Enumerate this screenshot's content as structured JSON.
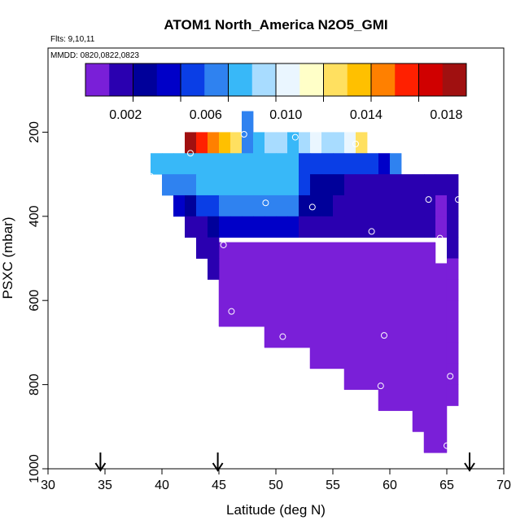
{
  "chart_data": {
    "type": "heatmap",
    "title": "ATOM1 North_America N2O5_GMI",
    "flights_label": "Flts: 9,10,11",
    "dates_label": "MMDD: 0820,0822,0823",
    "xlabel": "Latitude (deg N)",
    "ylabel": "PSXC (mbar)",
    "xlim": [
      30,
      70
    ],
    "ylim": [
      1000,
      0
    ],
    "x_ticks": [
      30,
      35,
      40,
      45,
      50,
      55,
      60,
      65,
      70
    ],
    "y_ticks": [
      200,
      400,
      600,
      800,
      1000
    ],
    "grid": false,
    "colorbar": {
      "range": [
        0,
        0.019
      ],
      "tick_values": [
        0.002,
        0.006,
        0.01,
        0.014,
        0.018
      ],
      "tick_labels": [
        "0.002",
        "0.006",
        "0.010",
        "0.014",
        "0.018"
      ],
      "colors": [
        "#7a1fd8",
        "#2a00b0",
        "#00009a",
        "#0000c8",
        "#0a3ee6",
        "#2f82f0",
        "#38b8f8",
        "#a8dcff",
        "#eaf6ff",
        "#ffffc8",
        "#ffe060",
        "#ffc000",
        "#ff8000",
        "#ff2000",
        "#d00000",
        "#a01010"
      ]
    },
    "cell_width_deg": 1,
    "cell_height_mbar": 50,
    "cells": [
      {
        "lat": 47,
        "p": 175,
        "v": 0.0065
      },
      {
        "lat": 42,
        "p": 225,
        "v": 0.0185
      },
      {
        "lat": 43,
        "p": 225,
        "v": 0.0165
      },
      {
        "lat": 44,
        "p": 225,
        "v": 0.015
      },
      {
        "lat": 45,
        "p": 225,
        "v": 0.0138
      },
      {
        "lat": 46,
        "p": 225,
        "v": 0.0128
      },
      {
        "lat": 47,
        "p": 225,
        "v": 0.007
      },
      {
        "lat": 48,
        "p": 225,
        "v": 0.0072
      },
      {
        "lat": 49,
        "p": 225,
        "v": 0.0085
      },
      {
        "lat": 50,
        "p": 225,
        "v": 0.0086
      },
      {
        "lat": 51,
        "p": 225,
        "v": 0.0083
      },
      {
        "lat": 52,
        "p": 225,
        "v": 0.0092
      },
      {
        "lat": 53,
        "p": 225,
        "v": 0.0095
      },
      {
        "lat": 54,
        "p": 225,
        "v": 0.0085
      },
      {
        "lat": 55,
        "p": 225,
        "v": 0.0092
      },
      {
        "lat": 56,
        "p": 225,
        "v": 0.0105
      },
      {
        "lat": 57,
        "p": 225,
        "v": 0.0122
      },
      {
        "lat": 39,
        "p": 275,
        "v": 0.0072
      },
      {
        "lat": 40,
        "p": 275,
        "v": 0.0072
      },
      {
        "lat": 41,
        "p": 275,
        "v": 0.0072
      },
      {
        "lat": 42,
        "p": 275,
        "v": 0.0072
      },
      {
        "lat": 43,
        "p": 275,
        "v": 0.0072
      },
      {
        "lat": 44,
        "p": 275,
        "v": 0.0072
      },
      {
        "lat": 45,
        "p": 275,
        "v": 0.0072
      },
      {
        "lat": 46,
        "p": 275,
        "v": 0.0072
      },
      {
        "lat": 47,
        "p": 275,
        "v": 0.0072
      },
      {
        "lat": 48,
        "p": 275,
        "v": 0.0072
      },
      {
        "lat": 49,
        "p": 275,
        "v": 0.0072
      },
      {
        "lat": 50,
        "p": 275,
        "v": 0.0072
      },
      {
        "lat": 51,
        "p": 275,
        "v": 0.0072
      },
      {
        "lat": 52,
        "p": 275,
        "v": 0.0052
      },
      {
        "lat": 53,
        "p": 275,
        "v": 0.0048
      },
      {
        "lat": 54,
        "p": 275,
        "v": 0.0048
      },
      {
        "lat": 55,
        "p": 275,
        "v": 0.0048
      },
      {
        "lat": 56,
        "p": 275,
        "v": 0.0048
      },
      {
        "lat": 57,
        "p": 275,
        "v": 0.0048
      },
      {
        "lat": 58,
        "p": 275,
        "v": 0.0048
      },
      {
        "lat": 59,
        "p": 275,
        "v": 0.0045
      },
      {
        "lat": 60,
        "p": 275,
        "v": 0.0062
      },
      {
        "lat": 40,
        "p": 325,
        "v": 0.0068
      },
      {
        "lat": 41,
        "p": 325,
        "v": 0.0068
      },
      {
        "lat": 42,
        "p": 325,
        "v": 0.0068
      },
      {
        "lat": 43,
        "p": 325,
        "v": 0.0072
      },
      {
        "lat": 44,
        "p": 325,
        "v": 0.0072
      },
      {
        "lat": 45,
        "p": 325,
        "v": 0.0072
      },
      {
        "lat": 46,
        "p": 325,
        "v": 0.0072
      },
      {
        "lat": 47,
        "p": 325,
        "v": 0.0072
      },
      {
        "lat": 48,
        "p": 325,
        "v": 0.0072
      },
      {
        "lat": 49,
        "p": 325,
        "v": 0.0072
      },
      {
        "lat": 50,
        "p": 325,
        "v": 0.0072
      },
      {
        "lat": 51,
        "p": 325,
        "v": 0.0072
      },
      {
        "lat": 52,
        "p": 325,
        "v": 0.0048
      },
      {
        "lat": 53,
        "p": 325,
        "v": 0.0025
      },
      {
        "lat": 54,
        "p": 325,
        "v": 0.0025
      },
      {
        "lat": 55,
        "p": 325,
        "v": 0.0025
      },
      {
        "lat": 56,
        "p": 325,
        "v": 0.0022
      },
      {
        "lat": 57,
        "p": 325,
        "v": 0.0022
      },
      {
        "lat": 58,
        "p": 325,
        "v": 0.0022
      },
      {
        "lat": 59,
        "p": 325,
        "v": 0.0022
      },
      {
        "lat": 60,
        "p": 325,
        "v": 0.0022
      },
      {
        "lat": 61,
        "p": 325,
        "v": 0.0022
      },
      {
        "lat": 62,
        "p": 325,
        "v": 0.0022
      },
      {
        "lat": 63,
        "p": 325,
        "v": 0.0022
      },
      {
        "lat": 64,
        "p": 325,
        "v": 0.0022
      },
      {
        "lat": 65,
        "p": 325,
        "v": 0.0022
      },
      {
        "lat": 41,
        "p": 375,
        "v": 0.0042
      },
      {
        "lat": 42,
        "p": 375,
        "v": 0.0025
      },
      {
        "lat": 43,
        "p": 375,
        "v": 0.0048
      },
      {
        "lat": 44,
        "p": 375,
        "v": 0.0058
      },
      {
        "lat": 45,
        "p": 375,
        "v": 0.0068
      },
      {
        "lat": 46,
        "p": 375,
        "v": 0.0068
      },
      {
        "lat": 47,
        "p": 375,
        "v": 0.0068
      },
      {
        "lat": 48,
        "p": 375,
        "v": 0.0062
      },
      {
        "lat": 49,
        "p": 375,
        "v": 0.0062
      },
      {
        "lat": 50,
        "p": 375,
        "v": 0.0062
      },
      {
        "lat": 51,
        "p": 375,
        "v": 0.0062
      },
      {
        "lat": 52,
        "p": 375,
        "v": 0.0035
      },
      {
        "lat": 53,
        "p": 375,
        "v": 0.0028
      },
      {
        "lat": 54,
        "p": 375,
        "v": 0.0028
      },
      {
        "lat": 55,
        "p": 375,
        "v": 0.0016
      },
      {
        "lat": 56,
        "p": 375,
        "v": 0.0012
      },
      {
        "lat": 57,
        "p": 375,
        "v": 0.0012
      },
      {
        "lat": 58,
        "p": 375,
        "v": 0.0012
      },
      {
        "lat": 59,
        "p": 375,
        "v": 0.0012
      },
      {
        "lat": 60,
        "p": 375,
        "v": 0.0012
      },
      {
        "lat": 61,
        "p": 375,
        "v": 0.0012
      },
      {
        "lat": 62,
        "p": 375,
        "v": 0.0012
      },
      {
        "lat": 63,
        "p": 375,
        "v": 0.0012
      },
      {
        "lat": 64,
        "p": 375,
        "v": 0.0005
      },
      {
        "lat": 65,
        "p": 375,
        "v": 0.0018
      },
      {
        "lat": 42,
        "p": 425,
        "v": 0.0018
      },
      {
        "lat": 43,
        "p": 425,
        "v": 0.0018
      },
      {
        "lat": 44,
        "p": 425,
        "v": 0.0025
      },
      {
        "lat": 45,
        "p": 425,
        "v": 0.0042
      },
      {
        "lat": 46,
        "p": 425,
        "v": 0.0042
      },
      {
        "lat": 47,
        "p": 425,
        "v": 0.0042
      },
      {
        "lat": 48,
        "p": 425,
        "v": 0.0042
      },
      {
        "lat": 49,
        "p": 425,
        "v": 0.0042
      },
      {
        "lat": 50,
        "p": 425,
        "v": 0.0042
      },
      {
        "lat": 51,
        "p": 425,
        "v": 0.0042
      },
      {
        "lat": 52,
        "p": 425,
        "v": 0.0022
      },
      {
        "lat": 53,
        "p": 425,
        "v": 0.0022
      },
      {
        "lat": 54,
        "p": 425,
        "v": 0.0022
      },
      {
        "lat": 55,
        "p": 425,
        "v": 0.0022
      },
      {
        "lat": 56,
        "p": 425,
        "v": 0.0022
      },
      {
        "lat": 57,
        "p": 425,
        "v": 0.0022
      },
      {
        "lat": 58,
        "p": 425,
        "v": 0.0014
      },
      {
        "lat": 59,
        "p": 425,
        "v": 0.0014
      },
      {
        "lat": 60,
        "p": 425,
        "v": 0.0014
      },
      {
        "lat": 61,
        "p": 425,
        "v": 0.0014
      },
      {
        "lat": 62,
        "p": 425,
        "v": 0.0014
      },
      {
        "lat": 63,
        "p": 425,
        "v": 0.0014
      },
      {
        "lat": 64,
        "p": 425,
        "v": 0.0003
      },
      {
        "lat": 65,
        "p": 425,
        "v": 0.0014
      },
      {
        "lat": 43,
        "p": 475,
        "v": 0.0014
      },
      {
        "lat": 44,
        "p": 475,
        "v": 0.0014
      },
      {
        "lat": 44,
        "p": 525,
        "v": 0.0014
      }
    ],
    "purple_region": {
      "v": 0.0001,
      "polygon": [
        [
          45,
          462
        ],
        [
          64,
          462
        ],
        [
          64,
          512
        ],
        [
          65,
          512
        ],
        [
          65,
          962
        ],
        [
          63,
          962
        ],
        [
          63,
          912
        ],
        [
          62,
          912
        ],
        [
          62,
          862
        ],
        [
          59,
          862
        ],
        [
          59,
          812
        ],
        [
          56,
          812
        ],
        [
          56,
          762
        ],
        [
          53,
          762
        ],
        [
          53,
          712
        ],
        [
          49,
          712
        ],
        [
          49,
          662
        ],
        [
          45,
          662
        ]
      ]
    },
    "right_edge_cells": [
      {
        "lat": 65,
        "p": 475,
        "v": 0.0012
      },
      {
        "lat": 65,
        "p": 525,
        "v": 0.0011
      },
      {
        "lat": 65,
        "p": 575,
        "v": 0.0009
      },
      {
        "lat": 65,
        "p": 625,
        "v": 0.0009
      },
      {
        "lat": 65,
        "p": 675,
        "v": 0.0008
      },
      {
        "lat": 65,
        "p": 725,
        "v": 0.0007
      },
      {
        "lat": 65,
        "p": 775,
        "v": 0.0006
      },
      {
        "lat": 65,
        "p": 825,
        "v": 0.0005
      }
    ],
    "flight_points": [
      {
        "lat": 47.2,
        "p": 205
      },
      {
        "lat": 42.5,
        "p": 250
      },
      {
        "lat": 51.7,
        "p": 212
      },
      {
        "lat": 57.0,
        "p": 228
      },
      {
        "lat": 39.0,
        "p": 305
      },
      {
        "lat": 49.1,
        "p": 368
      },
      {
        "lat": 53.2,
        "p": 378
      },
      {
        "lat": 63.4,
        "p": 360
      },
      {
        "lat": 66.0,
        "p": 360
      },
      {
        "lat": 58.4,
        "p": 436
      },
      {
        "lat": 64.4,
        "p": 452
      },
      {
        "lat": 45.4,
        "p": 468
      },
      {
        "lat": 46.1,
        "p": 626
      },
      {
        "lat": 50.6,
        "p": 686
      },
      {
        "lat": 59.5,
        "p": 683
      },
      {
        "lat": 59.2,
        "p": 803
      },
      {
        "lat": 65.3,
        "p": 780
      },
      {
        "lat": 65.0,
        "p": 945
      }
    ],
    "arrow_markers_lat": [
      34.6,
      44.9,
      67.0
    ]
  }
}
